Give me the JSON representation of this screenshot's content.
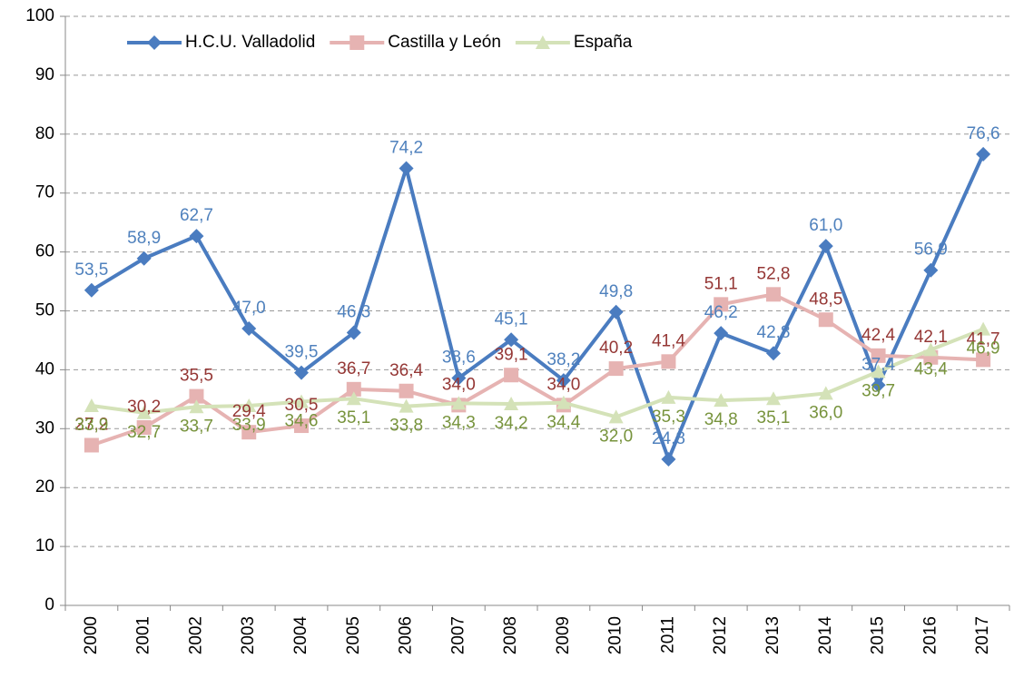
{
  "chart_data": {
    "type": "line",
    "categories": [
      "2000",
      "2001",
      "2002",
      "2003",
      "2004",
      "2005",
      "2006",
      "2007",
      "2008",
      "2009",
      "2010",
      "2011",
      "2012",
      "2013",
      "2014",
      "2015",
      "2016",
      "2017"
    ],
    "series": [
      {
        "name": "H.C.U. Valladolid",
        "color": "#4a7cc0",
        "label_color": "#4f81bd",
        "marker": "diamond",
        "values": [
          53.5,
          58.9,
          62.7,
          47.0,
          39.5,
          46.3,
          74.2,
          38.6,
          45.1,
          38.2,
          49.8,
          24.8,
          46.2,
          42.8,
          61.0,
          37.4,
          56.9,
          76.6
        ],
        "value_labels": [
          "53,5",
          "58,9",
          "62,7",
          "47,0",
          "39,5",
          "46,3",
          "74,2",
          "38,6",
          "45,1",
          "38,2",
          "49,8",
          "24,8",
          "46,2",
          "42,8",
          "61,0",
          "37,4",
          "56,9",
          "76,6"
        ]
      },
      {
        "name": "Castilla y León",
        "color": "#e6b3b2",
        "label_color": "#953735",
        "marker": "square",
        "values": [
          27.2,
          30.2,
          35.5,
          29.4,
          30.5,
          36.7,
          36.4,
          34.0,
          39.1,
          34.0,
          40.2,
          41.4,
          51.1,
          52.8,
          48.5,
          42.4,
          42.1,
          41.7
        ],
        "value_labels": [
          "27,2",
          "30,2",
          "35,5",
          "29,4",
          "30,5",
          "36,7",
          "36,4",
          "34,0",
          "39,1",
          "34,0",
          "40,2",
          "41,4",
          "51,1",
          "52,8",
          "48,5",
          "42,4",
          "42,1",
          "41,7"
        ]
      },
      {
        "name": "España",
        "color": "#d4e2b8",
        "label_color": "#77933c",
        "marker": "triangle",
        "values": [
          33.9,
          32.7,
          33.7,
          33.9,
          34.6,
          35.1,
          33.8,
          34.3,
          34.2,
          34.4,
          32.0,
          35.3,
          34.8,
          35.1,
          36.0,
          39.7,
          43.4,
          46.9
        ],
        "value_labels": [
          "33,9",
          "32,7",
          "33,7",
          "33,9",
          "34,6",
          "35,1",
          "33,8",
          "34,3",
          "34,2",
          "34,4",
          "32,0",
          "35,3",
          "34,8",
          "35,1",
          "36,0",
          "39,7",
          "43,4",
          "46,9"
        ]
      }
    ],
    "ylim": [
      0,
      100
    ],
    "yticks": [
      0,
      10,
      20,
      30,
      40,
      50,
      60,
      70,
      80,
      90,
      100
    ],
    "grid": true,
    "legend": "top"
  }
}
